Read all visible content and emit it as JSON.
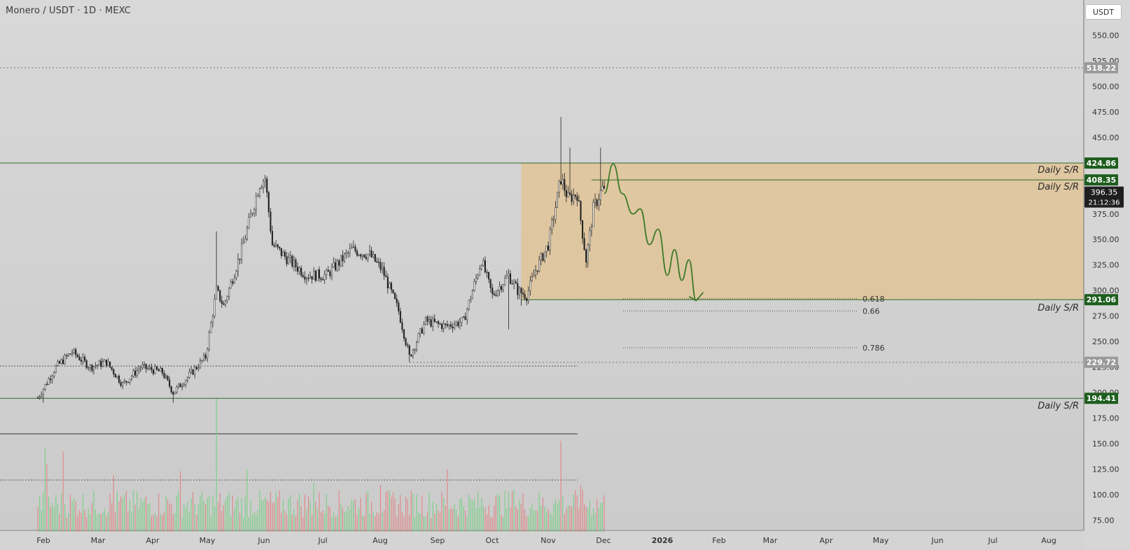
{
  "header": {
    "title": "Monero / USDT · 1D · MEXC",
    "currency_button": "USDT"
  },
  "colors": {
    "background": "#d4d4d4",
    "candle": "#222222",
    "zone_fill": "#e0c498",
    "support_resistance": "#2e6b27",
    "projection": "#3e7a2a",
    "volume_up": "#7fcf8a",
    "volume_down": "#e08a8a",
    "label_green": "#1e5e1e",
    "label_gray": "#9a9a9a",
    "label_dark": "#1f1f1f"
  },
  "chart_data": {
    "type": "candlestick",
    "symbol": "Monero / USDT",
    "interval": "1D",
    "exchange": "MEXC",
    "currency": "USDT",
    "y_axis": {
      "ticks": [
        550,
        525,
        500,
        475,
        450,
        375,
        350,
        325,
        300,
        275,
        250,
        225,
        200,
        175,
        150,
        125,
        100,
        75
      ],
      "range": [
        65,
        575
      ]
    },
    "x_axis": {
      "labels": [
        "Feb",
        "Mar",
        "Apr",
        "May",
        "Jun",
        "Jul",
        "Aug",
        "Sep",
        "Oct",
        "Nov",
        "Dec",
        "2026",
        "Feb",
        "Mar",
        "Apr",
        "May",
        "Jun",
        "Jul",
        "Aug"
      ]
    },
    "price_path": [
      [
        "2025-01-22",
        195
      ],
      [
        "2025-02-01",
        225
      ],
      [
        "2025-02-10",
        240
      ],
      [
        "2025-02-20",
        225
      ],
      [
        "2025-03-01",
        230
      ],
      [
        "2025-03-10",
        208
      ],
      [
        "2025-03-20",
        225
      ],
      [
        "2025-04-01",
        220
      ],
      [
        "2025-04-07",
        200
      ],
      [
        "2025-04-15",
        215
      ],
      [
        "2025-04-25",
        235
      ],
      [
        "2025-05-01",
        300
      ],
      [
        "2025-05-05",
        285
      ],
      [
        "2025-05-15",
        340
      ],
      [
        "2025-05-25",
        405
      ],
      [
        "2025-05-28",
        410
      ],
      [
        "2025-06-01",
        345
      ],
      [
        "2025-06-10",
        330
      ],
      [
        "2025-06-20",
        315
      ],
      [
        "2025-07-01",
        315
      ],
      [
        "2025-07-15",
        340
      ],
      [
        "2025-07-25",
        335
      ],
      [
        "2025-08-01",
        320
      ],
      [
        "2025-08-10",
        280
      ],
      [
        "2025-08-16",
        235
      ],
      [
        "2025-08-25",
        270
      ],
      [
        "2025-09-05",
        265
      ],
      [
        "2025-09-15",
        270
      ],
      [
        "2025-09-25",
        330
      ],
      [
        "2025-10-01",
        295
      ],
      [
        "2025-10-10",
        315
      ],
      [
        "2025-10-15",
        300
      ],
      [
        "2025-10-20",
        295
      ],
      [
        "2025-10-25",
        320
      ],
      [
        "2025-11-01",
        345
      ],
      [
        "2025-11-08",
        410
      ],
      [
        "2025-11-12",
        390
      ],
      [
        "2025-11-17",
        395
      ],
      [
        "2025-11-22",
        330
      ],
      [
        "2025-11-26",
        380
      ],
      [
        "2025-12-01",
        400
      ],
      [
        "2025-12-02",
        396.35
      ]
    ],
    "current_price": "396.35",
    "countdown": "21:12:36",
    "price_labels": [
      {
        "value": "518.22",
        "style": "gray"
      },
      {
        "value": "424.86",
        "style": "green"
      },
      {
        "value": "408.35",
        "style": "green"
      },
      {
        "value": "291.06",
        "style": "green"
      },
      {
        "value": "229.72",
        "style": "gray"
      },
      {
        "value": "194.41",
        "style": "green"
      }
    ],
    "sr_lines": [
      {
        "value": 424.86,
        "label": "Daily S/R"
      },
      {
        "value": 408.35,
        "label": "Daily S/R"
      },
      {
        "value": 291.06,
        "label": "Daily S/R"
      },
      {
        "value": 194.41,
        "label": "Daily S/R"
      }
    ],
    "zone": {
      "from": "2025-10-17",
      "top": 424.86,
      "bottom": 291.06
    },
    "fib_levels": [
      {
        "label": "0.618",
        "value": 292
      },
      {
        "label": "0.66",
        "value": 280
      },
      {
        "label": "0.786",
        "value": 244
      }
    ],
    "dotted_levels": [
      518.22,
      229.72
    ],
    "projection": [
      [
        "2025-12-02",
        395
      ],
      [
        "2025-12-07",
        424
      ],
      [
        "2025-12-12",
        395
      ],
      [
        "2025-12-18",
        375
      ],
      [
        "2025-12-22",
        380
      ],
      [
        "2025-12-27",
        345
      ],
      [
        "2026-01-01",
        360
      ],
      [
        "2026-01-06",
        315
      ],
      [
        "2026-01-10",
        340
      ],
      [
        "2026-01-14",
        310
      ],
      [
        "2026-01-18",
        330
      ],
      [
        "2026-01-22",
        290
      ]
    ]
  }
}
